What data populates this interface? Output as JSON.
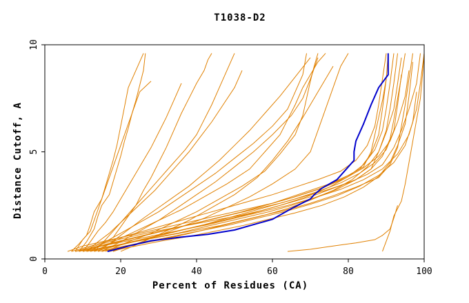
{
  "chart_data": {
    "type": "line",
    "title": "T1038-D2",
    "xlabel": "Percent of Residues (CA)",
    "ylabel": "Distance Cutoff, A",
    "xlim": [
      0,
      100
    ],
    "ylim": [
      0,
      10
    ],
    "xticks": [
      "0",
      "20",
      "40",
      "60",
      "80",
      "100"
    ],
    "yticks": [
      "0",
      "5",
      "10"
    ],
    "grid": false,
    "legend": "none",
    "colors": {
      "models": "#e08000",
      "highlight": "#0000cc"
    },
    "highlight_series": {
      "x": [
        16.5,
        22,
        28,
        35,
        43,
        50,
        55,
        60,
        65,
        70,
        71,
        73,
        77,
        80,
        81.5,
        81.5,
        82,
        84,
        86,
        88,
        90.5,
        90.5
      ],
      "y": [
        0.35,
        0.6,
        0.85,
        1.0,
        1.15,
        1.35,
        1.6,
        1.85,
        2.35,
        2.8,
        3.0,
        3.3,
        3.7,
        4.3,
        4.6,
        5.0,
        5.5,
        6.3,
        7.2,
        8.0,
        8.6,
        9.6
      ]
    },
    "model_series": [
      {
        "x": [
          12,
          15,
          18,
          20,
          22,
          24,
          26,
          28,
          30,
          32,
          34,
          36,
          38,
          40,
          42,
          43,
          44
        ],
        "y": [
          0.35,
          0.7,
          1.0,
          1.5,
          2.0,
          2.5,
          3.2,
          3.8,
          4.5,
          5.2,
          6.0,
          6.8,
          7.5,
          8.2,
          8.8,
          9.3,
          9.6
        ]
      },
      {
        "x": [
          9,
          11,
          13,
          14,
          15,
          17,
          18,
          19,
          20,
          21,
          22,
          23,
          24,
          25,
          26,
          26.5
        ],
        "y": [
          0.35,
          0.8,
          1.4,
          2.0,
          2.5,
          3.0,
          3.6,
          4.2,
          4.8,
          5.5,
          6.1,
          6.8,
          7.4,
          8.1,
          8.8,
          9.6
        ]
      },
      {
        "x": [
          7,
          9,
          11,
          12,
          13,
          15,
          16,
          17,
          18,
          19,
          20,
          21,
          22,
          24,
          26
        ],
        "y": [
          0.35,
          0.7,
          1.1,
          1.6,
          2.2,
          2.8,
          3.4,
          4.0,
          4.6,
          5.3,
          6.2,
          7.1,
          8.0,
          8.8,
          9.6
        ]
      },
      {
        "x": [
          8,
          10,
          12,
          13,
          14,
          15,
          16,
          17,
          18,
          19,
          20,
          21,
          22,
          23,
          24,
          25,
          28
        ],
        "y": [
          0.35,
          0.9,
          1.3,
          1.8,
          2.3,
          2.8,
          3.3,
          3.8,
          4.3,
          4.8,
          5.3,
          5.8,
          6.3,
          6.8,
          7.3,
          7.8,
          8.3
        ]
      },
      {
        "x": [
          10,
          12,
          14,
          16,
          18,
          20,
          22,
          24,
          26,
          28,
          30,
          32,
          34,
          36
        ],
        "y": [
          0.35,
          0.8,
          1.3,
          1.7,
          2.2,
          2.8,
          3.4,
          4.0,
          4.6,
          5.2,
          5.9,
          6.6,
          7.4,
          8.2
        ]
      },
      {
        "x": [
          11,
          14,
          17,
          20,
          23,
          26,
          29,
          32,
          35,
          38,
          41,
          44,
          47,
          50,
          52
        ],
        "y": [
          0.35,
          0.8,
          1.2,
          1.7,
          2.2,
          2.7,
          3.2,
          3.8,
          4.4,
          5.0,
          5.7,
          6.4,
          7.2,
          8.0,
          8.8
        ]
      },
      {
        "x": [
          13,
          16,
          19,
          22,
          25,
          28,
          31,
          34,
          37,
          40,
          42,
          44,
          46,
          48,
          50
        ],
        "y": [
          0.35,
          0.9,
          1.5,
          2.1,
          2.7,
          3.3,
          3.9,
          4.5,
          5.1,
          5.8,
          6.5,
          7.2,
          8.0,
          8.8,
          9.6
        ]
      },
      {
        "x": [
          14,
          17,
          20,
          23,
          26,
          30,
          34,
          38,
          42,
          46,
          50,
          54,
          58,
          62,
          66,
          70
        ],
        "y": [
          0.35,
          0.7,
          1.1,
          1.5,
          1.9,
          2.4,
          2.9,
          3.4,
          4.0,
          4.6,
          5.3,
          6.0,
          6.8,
          7.6,
          8.5,
          9.4
        ]
      },
      {
        "x": [
          12,
          16,
          20,
          25,
          30,
          35,
          40,
          45,
          50,
          55,
          60,
          64,
          66,
          68,
          69
        ],
        "y": [
          0.35,
          0.8,
          1.2,
          1.7,
          2.2,
          2.8,
          3.4,
          4.0,
          4.7,
          5.4,
          6.2,
          7.0,
          7.8,
          8.6,
          9.6
        ]
      },
      {
        "x": [
          15,
          20,
          25,
          30,
          35,
          40,
          45,
          50,
          55,
          60,
          65,
          68,
          70,
          72
        ],
        "y": [
          0.35,
          0.8,
          1.3,
          1.8,
          2.4,
          3.0,
          3.6,
          4.3,
          5.0,
          5.8,
          6.7,
          7.5,
          8.4,
          9.4
        ]
      },
      {
        "x": [
          13,
          18,
          24,
          30,
          36,
          42,
          48,
          54,
          58,
          62,
          64,
          66,
          68,
          70,
          72,
          74
        ],
        "y": [
          0.35,
          0.8,
          1.3,
          1.8,
          2.3,
          2.9,
          3.5,
          4.2,
          5.0,
          5.8,
          6.5,
          7.2,
          8.0,
          8.6,
          9.2,
          9.6
        ]
      },
      {
        "x": [
          16,
          22,
          28,
          34,
          40,
          46,
          52,
          58,
          62,
          66,
          68,
          69,
          70,
          71,
          72
        ],
        "y": [
          0.35,
          0.8,
          1.2,
          1.7,
          2.2,
          2.8,
          3.4,
          4.1,
          4.9,
          5.8,
          6.7,
          7.5,
          8.3,
          9.0,
          9.6
        ]
      },
      {
        "x": [
          18,
          24,
          30,
          36,
          42,
          48,
          54,
          60,
          66,
          70,
          72,
          74,
          76,
          78,
          80
        ],
        "y": [
          0.35,
          0.7,
          1.1,
          1.5,
          1.9,
          2.4,
          2.9,
          3.5,
          4.2,
          5.0,
          6.0,
          7.0,
          8.0,
          9.0,
          9.6
        ]
      },
      {
        "x": [
          20,
          26,
          32,
          38,
          44,
          50,
          56,
          60,
          64,
          68,
          72,
          76
        ],
        "y": [
          0.35,
          0.8,
          1.3,
          1.8,
          2.4,
          3.0,
          3.8,
          4.6,
          5.5,
          6.6,
          7.8,
          9.0
        ]
      },
      {
        "x": [
          64,
          70,
          76,
          82,
          87,
          89,
          91,
          92,
          93
        ],
        "y": [
          0.35,
          0.45,
          0.6,
          0.75,
          0.9,
          1.1,
          1.4,
          1.9,
          2.5
        ]
      },
      {
        "x": [
          89,
          91,
          92,
          94,
          95,
          96,
          97,
          98,
          99,
          99.5,
          100
        ],
        "y": [
          0.35,
          1.3,
          2.0,
          2.7,
          3.5,
          4.5,
          5.5,
          6.5,
          7.5,
          8.5,
          9.6
        ]
      },
      {
        "x": [
          6,
          10,
          15,
          20,
          25,
          30,
          35,
          40,
          45,
          50,
          55,
          60,
          65,
          70,
          75,
          80,
          84,
          86,
          87,
          88,
          89,
          90,
          90.5
        ],
        "y": [
          0.35,
          0.6,
          0.8,
          1.0,
          1.2,
          1.4,
          1.6,
          1.8,
          2.0,
          2.2,
          2.4,
          2.6,
          2.9,
          3.2,
          3.5,
          3.9,
          4.3,
          5.0,
          5.8,
          6.6,
          7.4,
          8.4,
          9.6
        ]
      },
      {
        "x": [
          8,
          13,
          18,
          23,
          28,
          34,
          40,
          46,
          52,
          58,
          64,
          70,
          76,
          82,
          86,
          88,
          90,
          91,
          92,
          93
        ],
        "y": [
          0.35,
          0.6,
          0.85,
          1.05,
          1.25,
          1.45,
          1.65,
          1.85,
          2.05,
          2.3,
          2.6,
          2.9,
          3.3,
          3.7,
          4.2,
          5.0,
          6.0,
          7.0,
          8.2,
          9.6
        ]
      },
      {
        "x": [
          10,
          16,
          22,
          28,
          34,
          40,
          46,
          52,
          58,
          64,
          70,
          76,
          82,
          88,
          91,
          93,
          94,
          95,
          96,
          97
        ],
        "y": [
          0.35,
          0.55,
          0.75,
          0.95,
          1.15,
          1.35,
          1.55,
          1.8,
          2.05,
          2.3,
          2.6,
          2.95,
          3.35,
          3.8,
          4.4,
          5.2,
          6.2,
          7.2,
          8.4,
          9.6
        ]
      },
      {
        "x": [
          9,
          14,
          20,
          26,
          32,
          38,
          44,
          50,
          56,
          62,
          68,
          74,
          80,
          85,
          89,
          92,
          94,
          96,
          98,
          99
        ],
        "y": [
          0.35,
          0.6,
          0.85,
          1.1,
          1.35,
          1.6,
          1.85,
          2.1,
          2.35,
          2.6,
          2.9,
          3.2,
          3.55,
          3.95,
          4.4,
          5.2,
          6.0,
          7.0,
          8.2,
          9.6
        ]
      },
      {
        "x": [
          12,
          18,
          24,
          30,
          36,
          42,
          48,
          54,
          60,
          66,
          72,
          78,
          83,
          87,
          90,
          92,
          93,
          94
        ],
        "y": [
          0.35,
          0.6,
          0.85,
          1.1,
          1.35,
          1.6,
          1.9,
          2.2,
          2.5,
          2.8,
          3.15,
          3.55,
          4.0,
          4.5,
          5.1,
          6.0,
          7.2,
          8.6
        ]
      },
      {
        "x": [
          7,
          12,
          18,
          24,
          30,
          36,
          42,
          48,
          54,
          60,
          66,
          72,
          78,
          82,
          85,
          87,
          88,
          89,
          90
        ],
        "y": [
          0.35,
          0.6,
          0.9,
          1.2,
          1.5,
          1.8,
          2.1,
          2.4,
          2.7,
          3.0,
          3.35,
          3.7,
          4.1,
          4.6,
          5.3,
          6.2,
          7.2,
          8.4,
          9.6
        ]
      },
      {
        "x": [
          11,
          17,
          23,
          29,
          35,
          41,
          47,
          53,
          59,
          65,
          71,
          77,
          82,
          86,
          89,
          91,
          92,
          93,
          94,
          95
        ],
        "y": [
          0.35,
          0.55,
          0.8,
          1.0,
          1.2,
          1.45,
          1.7,
          1.95,
          2.2,
          2.5,
          2.85,
          3.25,
          3.7,
          4.2,
          4.8,
          5.6,
          6.5,
          7.5,
          8.5,
          9.6
        ]
      },
      {
        "x": [
          13,
          20,
          27,
          34,
          41,
          48,
          55,
          62,
          69,
          75,
          80,
          84,
          87,
          89,
          90,
          91,
          92
        ],
        "y": [
          0.35,
          0.65,
          0.95,
          1.25,
          1.55,
          1.85,
          2.15,
          2.5,
          2.9,
          3.35,
          3.85,
          4.4,
          5.1,
          6.0,
          7.0,
          8.2,
          9.6
        ]
      },
      {
        "x": [
          15,
          22,
          29,
          36,
          43,
          50,
          57,
          64,
          70,
          76,
          81,
          85,
          88,
          90,
          92,
          93,
          94
        ],
        "y": [
          0.35,
          0.6,
          0.85,
          1.1,
          1.4,
          1.7,
          2.0,
          2.35,
          2.75,
          3.2,
          3.7,
          4.3,
          5.0,
          5.9,
          7.0,
          8.2,
          9.4
        ]
      },
      {
        "x": [
          8,
          15,
          22,
          29,
          36,
          43,
          50,
          57,
          64,
          71,
          78,
          84,
          89,
          93,
          96,
          98,
          99,
          100
        ],
        "y": [
          0.35,
          0.6,
          0.85,
          1.1,
          1.35,
          1.6,
          1.9,
          2.2,
          2.5,
          2.85,
          3.25,
          3.7,
          4.2,
          4.9,
          5.8,
          7.0,
          8.2,
          9.6
        ]
      },
      {
        "x": [
          10,
          17,
          24,
          31,
          38,
          45,
          52,
          59,
          66,
          73,
          79,
          84,
          88,
          91,
          93,
          95,
          96
        ],
        "y": [
          0.35,
          0.7,
          1.0,
          1.3,
          1.6,
          1.9,
          2.2,
          2.55,
          2.9,
          3.3,
          3.75,
          4.25,
          4.8,
          5.5,
          6.4,
          7.6,
          8.8
        ]
      },
      {
        "x": [
          14,
          21,
          28,
          35,
          42,
          49,
          56,
          63,
          70,
          77,
          83,
          88,
          92,
          95,
          97,
          98
        ],
        "y": [
          0.35,
          0.6,
          0.85,
          1.1,
          1.35,
          1.6,
          1.9,
          2.2,
          2.55,
          2.95,
          3.4,
          3.9,
          4.5,
          5.3,
          6.4,
          7.8
        ]
      },
      {
        "x": [
          9,
          16,
          23,
          30,
          37,
          44,
          51,
          58,
          65,
          72,
          78,
          83,
          86,
          88,
          89,
          90
        ],
        "y": [
          0.35,
          0.65,
          0.95,
          1.25,
          1.55,
          1.85,
          2.15,
          2.5,
          2.85,
          3.25,
          3.7,
          4.2,
          4.9,
          5.8,
          7.0,
          8.4
        ]
      },
      {
        "x": [
          17,
          24,
          31,
          38,
          45,
          52,
          59,
          66,
          73,
          79,
          84,
          88,
          91,
          93,
          95,
          96,
          97
        ],
        "y": [
          0.35,
          0.6,
          0.85,
          1.05,
          1.3,
          1.55,
          1.85,
          2.15,
          2.5,
          2.9,
          3.35,
          3.85,
          4.5,
          5.3,
          6.3,
          7.6,
          9.2
        ]
      }
    ]
  }
}
